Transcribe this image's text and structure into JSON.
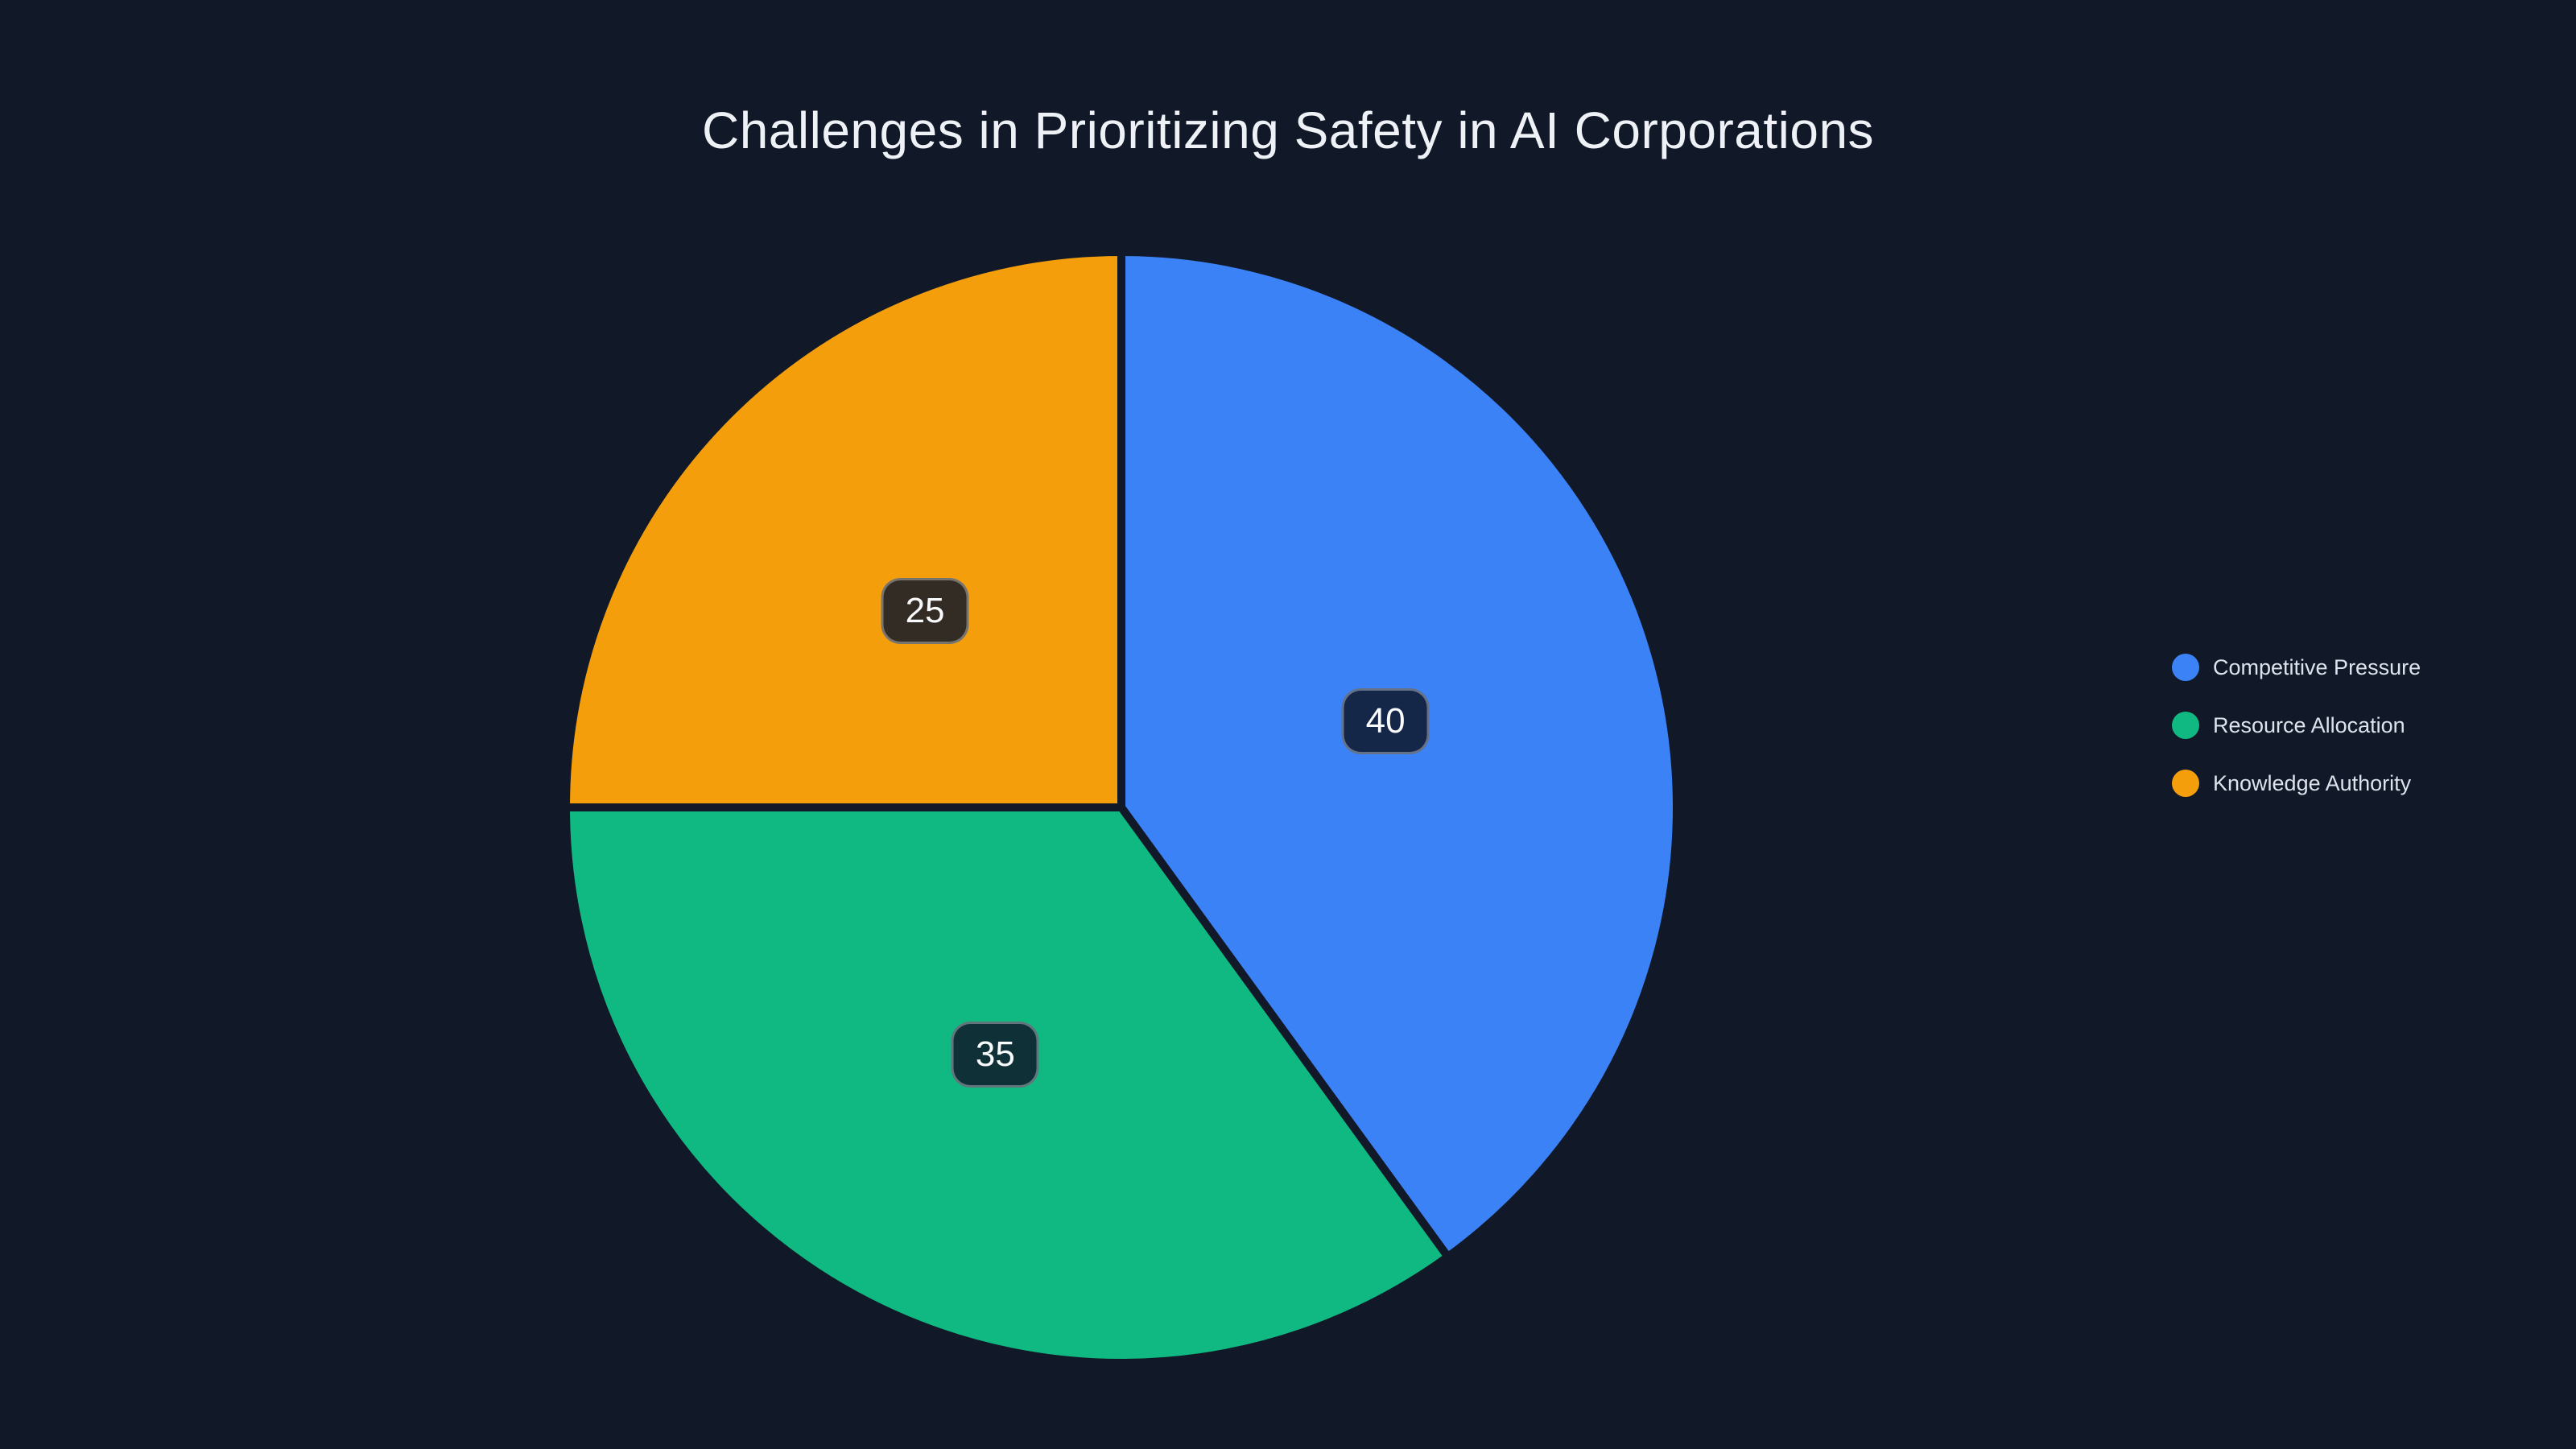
{
  "title": "Challenges in Prioritizing Safety in AI Corporations",
  "colors": {
    "background": "#111827",
    "title_text": "#eef2f7",
    "legend_text": "#dde3ec",
    "value_label_text": "#f8fafc",
    "value_label_bg": "rgba(15,23,42,0.85)",
    "value_label_border": "rgba(248,250,252,0.35)",
    "blue": "#3b82f6",
    "green": "#10b981",
    "orange": "#f59e0b"
  },
  "chart_data": {
    "type": "pie",
    "title": "Challenges in Prioritizing Safety in AI Corporations",
    "labels": [
      "Competitive Pressure",
      "Resource Allocation",
      "Knowledge Authority"
    ],
    "values": [
      40,
      35,
      25
    ],
    "slice_colors": [
      "#3b82f6",
      "#10b981",
      "#f59e0b"
    ],
    "value_labels_shown": [
      "40",
      "35",
      "25"
    ],
    "start_angle_deg": 0,
    "direction": "clockwise",
    "legend_position": "right",
    "legend_marker": "circle"
  }
}
